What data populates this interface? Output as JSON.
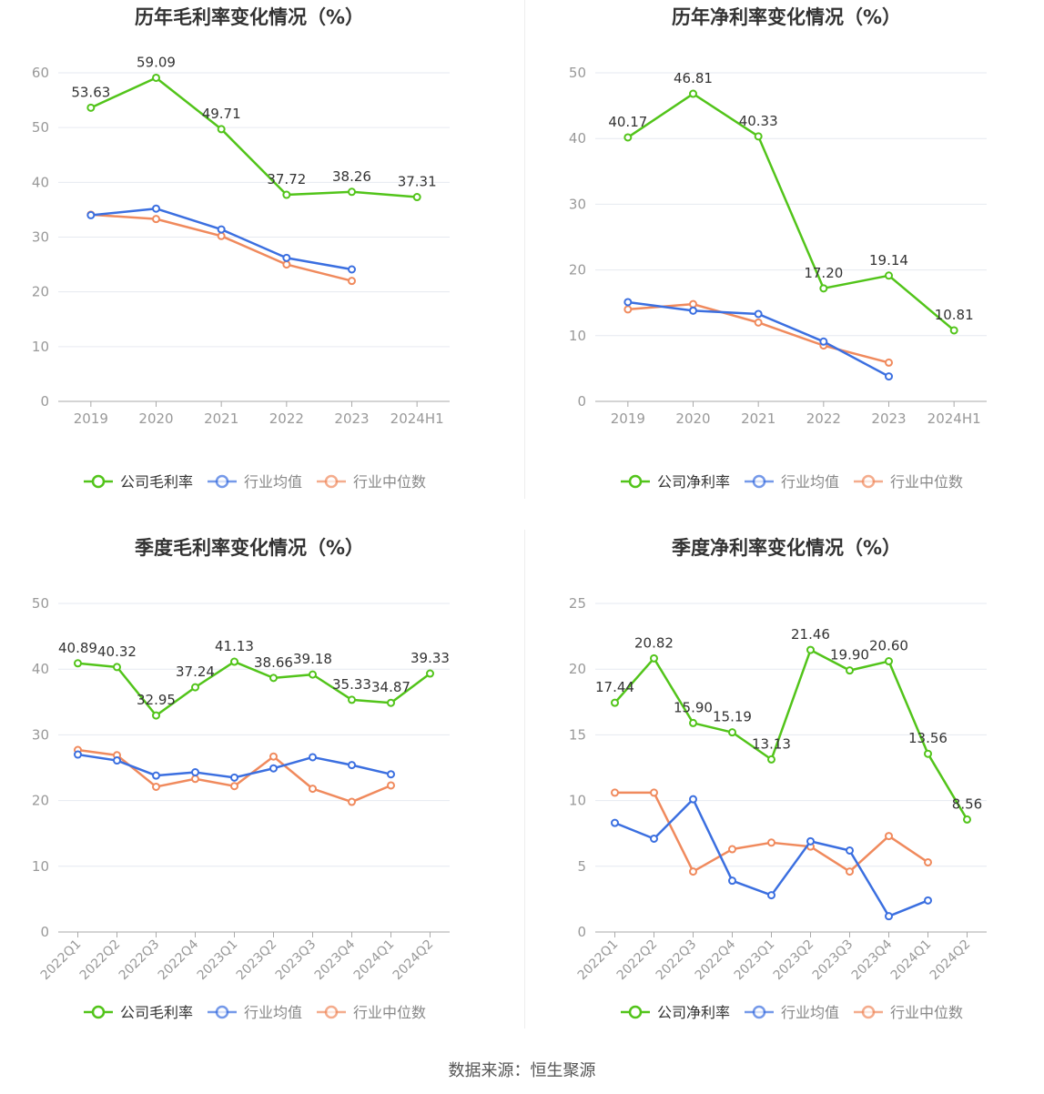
{
  "colors": {
    "company": "#52c41a",
    "avg": "#3b6fe0",
    "median": "#f08a5d",
    "grid": "#e6e9f0",
    "axis": "#999999",
    "label": "#333333",
    "title": "#333333"
  },
  "source": "数据来源：恒生聚源",
  "chart_data": [
    {
      "type": "line",
      "title": "历年毛利率变化情况（%）",
      "categories": [
        "2019",
        "2020",
        "2021",
        "2022",
        "2023",
        "2024H1"
      ],
      "ylim": [
        0,
        60
      ],
      "yticks": [
        0,
        10,
        20,
        30,
        40,
        50,
        60
      ],
      "grid": true,
      "legend_position": "bottom",
      "series": [
        {
          "name": "公司毛利率",
          "color": "#52c41a",
          "values": [
            53.63,
            59.09,
            49.71,
            37.72,
            38.26,
            37.31
          ],
          "labels": [
            "53.63",
            "59.09",
            "49.71",
            "37.72",
            "38.26",
            "37.31"
          ]
        },
        {
          "name": "行业均值",
          "color": "#3b6fe0",
          "values": [
            34.0,
            35.2,
            31.4,
            26.2,
            24.1,
            null
          ]
        },
        {
          "name": "行业中位数",
          "color": "#f08a5d",
          "values": [
            34.1,
            33.3,
            30.2,
            25.0,
            22.0,
            null
          ]
        }
      ]
    },
    {
      "type": "line",
      "title": "历年净利率变化情况（%）",
      "categories": [
        "2019",
        "2020",
        "2021",
        "2022",
        "2023",
        "2024H1"
      ],
      "ylim": [
        0,
        50
      ],
      "yticks": [
        0,
        10,
        20,
        30,
        40,
        50
      ],
      "grid": true,
      "legend_position": "bottom",
      "series": [
        {
          "name": "公司净利率",
          "color": "#52c41a",
          "values": [
            40.17,
            46.81,
            40.33,
            17.2,
            19.14,
            10.81
          ],
          "labels": [
            "40.17",
            "46.81",
            "40.33",
            "17.20",
            "19.14",
            "10.81"
          ]
        },
        {
          "name": "行业均值",
          "color": "#3b6fe0",
          "values": [
            15.1,
            13.8,
            13.3,
            9.1,
            3.8,
            null
          ]
        },
        {
          "name": "行业中位数",
          "color": "#f08a5d",
          "values": [
            14.0,
            14.8,
            12.0,
            8.5,
            5.9,
            null
          ]
        }
      ]
    },
    {
      "type": "line",
      "title": "季度毛利率变化情况（%）",
      "categories": [
        "2022Q1",
        "2022Q2",
        "2022Q3",
        "2022Q4",
        "2023Q1",
        "2023Q2",
        "2023Q3",
        "2023Q4",
        "2024Q1",
        "2024Q2"
      ],
      "ylim": [
        0,
        50
      ],
      "yticks": [
        0,
        10,
        20,
        30,
        40,
        50
      ],
      "grid": true,
      "legend_position": "bottom",
      "series": [
        {
          "name": "公司毛利率",
          "color": "#52c41a",
          "values": [
            40.89,
            40.32,
            32.95,
            37.24,
            41.13,
            38.66,
            39.18,
            35.33,
            34.87,
            39.33
          ],
          "labels": [
            "40.89",
            "40.32",
            "32.95",
            "37.24",
            "41.13",
            "38.66",
            "39.18",
            "35.33",
            "34.87",
            "39.33"
          ]
        },
        {
          "name": "行业均值",
          "color": "#3b6fe0",
          "values": [
            27.0,
            26.1,
            23.8,
            24.3,
            23.5,
            24.9,
            26.6,
            25.4,
            24.0,
            null
          ]
        },
        {
          "name": "行业中位数",
          "color": "#f08a5d",
          "values": [
            27.7,
            26.9,
            22.1,
            23.3,
            22.2,
            26.7,
            21.8,
            19.8,
            22.3,
            null
          ]
        }
      ]
    },
    {
      "type": "line",
      "title": "季度净利率变化情况（%）",
      "categories": [
        "2022Q1",
        "2022Q2",
        "2022Q3",
        "2022Q4",
        "2023Q1",
        "2023Q2",
        "2023Q3",
        "2023Q4",
        "2024Q1",
        "2024Q2"
      ],
      "ylim": [
        0,
        25
      ],
      "yticks": [
        0,
        5,
        10,
        15,
        20,
        25
      ],
      "grid": true,
      "legend_position": "bottom",
      "series": [
        {
          "name": "公司净利率",
          "color": "#52c41a",
          "values": [
            17.44,
            20.82,
            15.9,
            15.19,
            13.13,
            21.46,
            19.9,
            20.6,
            13.56,
            8.56
          ],
          "labels": [
            "17.44",
            "20.82",
            "15.90",
            "15.19",
            "13.13",
            "21.46",
            "19.90",
            "20.60",
            "13.56",
            "8.56"
          ]
        },
        {
          "name": "行业均值",
          "color": "#3b6fe0",
          "values": [
            8.3,
            7.1,
            10.1,
            3.9,
            2.8,
            6.9,
            6.2,
            1.2,
            2.4,
            null
          ]
        },
        {
          "name": "行业中位数",
          "color": "#f08a5d",
          "values": [
            10.6,
            10.6,
            4.6,
            6.3,
            6.8,
            6.5,
            4.6,
            7.3,
            5.3,
            null
          ]
        }
      ]
    }
  ]
}
